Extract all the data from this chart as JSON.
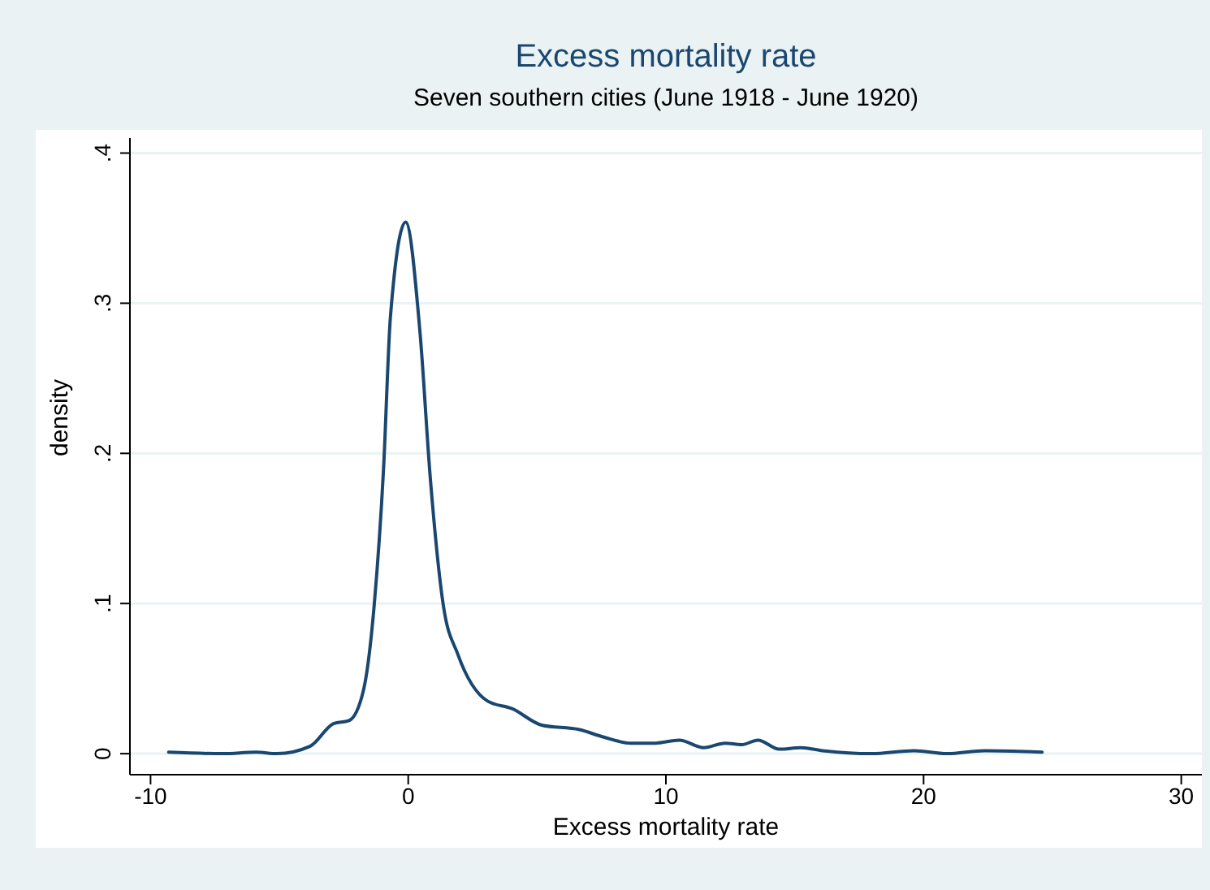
{
  "chart_data": {
    "type": "line",
    "title": "Excess mortality rate",
    "subtitle": "Seven southern cities (June 1918 - June 1920)",
    "xlabel": "Excess mortality rate",
    "ylabel": "density",
    "x": [
      -9.3,
      -7.2,
      -5.9,
      -5.1,
      -3.8,
      -2.9,
      -2.3,
      -1.74,
      -1.32,
      -0.96,
      -0.69,
      -0.1,
      0.46,
      0.85,
      1.36,
      1.93,
      3.08,
      4.03,
      5.18,
      6.65,
      7.59,
      8.64,
      9.58,
      10.52,
      11.47,
      12.3,
      12.94,
      13.57,
      14.4,
      15.24,
      16.08,
      17.97,
      19.64,
      20.9,
      22.37,
      24.6
    ],
    "series": [
      {
        "color": "#1a476f",
        "values": [
          0.001,
          0,
          0.001,
          0,
          0.005,
          0.02,
          0.022,
          0.042,
          0.099,
          0.189,
          0.291,
          0.354,
          0.28,
          0.185,
          0.099,
          0.066,
          0.035,
          0.03,
          0.019,
          0.016,
          0.011,
          0.007,
          0.007,
          0.009,
          0.004,
          0.007,
          0.006,
          0.009,
          0.003,
          0.004,
          0.002,
          0,
          0.002,
          0,
          0.002,
          0.001
        ]
      }
    ],
    "xlim": [
      -10.8,
      30.8
    ],
    "xticks": [
      -10,
      0,
      10,
      20,
      30
    ],
    "ylim": [
      -0.014,
      0.41
    ],
    "yticks": [
      0,
      {
        "value": 0.1,
        "label": ".1"
      },
      {
        "value": 0.2,
        "label": ".2"
      },
      {
        "value": 0.3,
        "label": ".3"
      },
      {
        "value": 0.4,
        "label": ".4"
      }
    ],
    "grid": "y"
  }
}
